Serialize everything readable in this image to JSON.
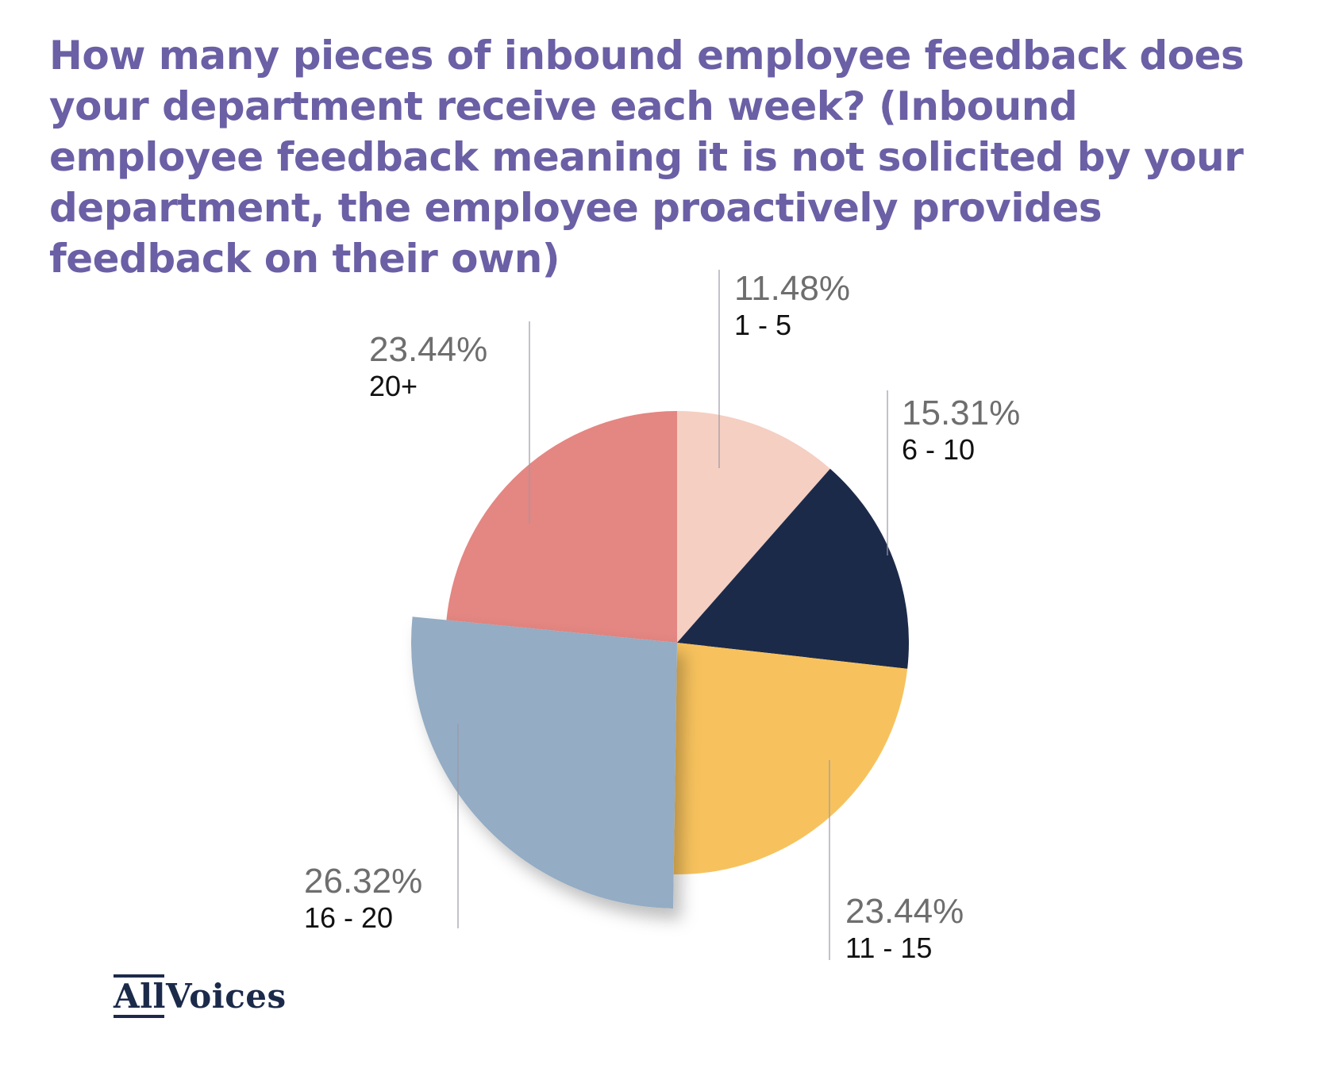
{
  "chart_data": {
    "type": "pie",
    "title": "How many pieces of inbound employee feedback does your department receive each week? (Inbound employee feedback meaning it is not solicited by your department, the employee proactively provides feedback on their own)",
    "slices": [
      {
        "category": "1 - 5",
        "value": 11.48,
        "label": "11.48%",
        "color": "#f5cfc2",
        "exploded": false
      },
      {
        "category": "6 - 10",
        "value": 15.31,
        "label": "15.31%",
        "color": "#1c2a4a",
        "exploded": false
      },
      {
        "category": "11 - 15",
        "value": 23.44,
        "label": "23.44%",
        "color": "#f7c25d",
        "exploded": false
      },
      {
        "category": "16 - 20",
        "value": 26.32,
        "label": "26.32%",
        "color": "#94acc4",
        "exploded": true
      },
      {
        "category": "20+",
        "value": 23.44,
        "label": "23.44%",
        "color": "#e48682",
        "exploded": false
      }
    ],
    "start_angle": "12 o'clock",
    "direction": "clockwise",
    "label_color": "#6e6e6e",
    "title_color": "#6b5fa5"
  },
  "brand": {
    "logo_text": "AllVoices",
    "logo_color": "#1c2a4a"
  }
}
